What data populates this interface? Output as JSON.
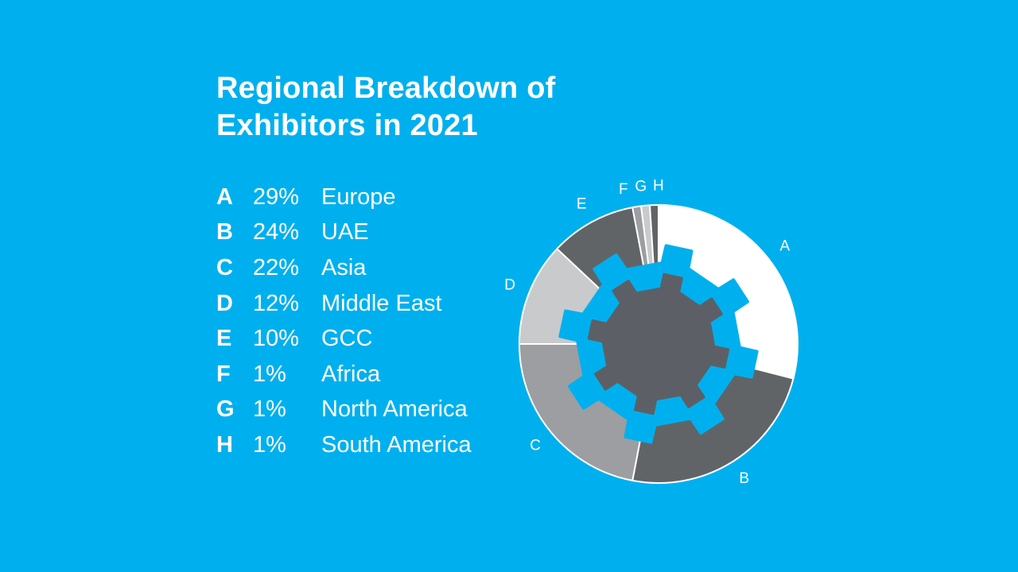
{
  "chart_data": {
    "type": "pie",
    "title": "Regional Breakdown of Exhibitors in 2021",
    "title_lines": [
      "Regional Breakdown of",
      "Exhibitors in 2021"
    ],
    "slices": [
      {
        "letter": "A",
        "value": 29,
        "label": "29%",
        "name": "Europe",
        "color": "#ffffff"
      },
      {
        "letter": "B",
        "value": 24,
        "label": "24%",
        "name": "UAE",
        "color": "#616467"
      },
      {
        "letter": "C",
        "value": 22,
        "label": "22%",
        "name": "Asia",
        "color": "#9c9ea1"
      },
      {
        "letter": "D",
        "value": 12,
        "label": "12%",
        "name": "Middle East",
        "color": "#c9cacc"
      },
      {
        "letter": "E",
        "value": 10,
        "label": "10%",
        "name": "GCC",
        "color": "#616467"
      },
      {
        "letter": "F",
        "value": 1,
        "label": "1%",
        "name": "Africa",
        "color": "#9c9ea1"
      },
      {
        "letter": "G",
        "value": 1,
        "label": "1%",
        "name": "North America",
        "color": "#c9cacc"
      },
      {
        "letter": "H",
        "value": 1,
        "label": "1%",
        "name": "South America",
        "color": "#616467"
      }
    ],
    "legend_position": "left",
    "gear_color": "#5c6066",
    "background_color": "#00b0ee"
  }
}
